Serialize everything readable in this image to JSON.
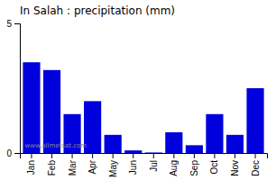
{
  "chart_data": {
    "type": "bar",
    "title": "In Salah : precipitation (mm)",
    "categories": [
      "Jan",
      "Feb",
      "Mar",
      "Apr",
      "May",
      "Jun",
      "Jul",
      "Aug",
      "Sep",
      "Oct",
      "Nov",
      "Dec"
    ],
    "values": [
      3.5,
      3.2,
      1.5,
      2.0,
      0.7,
      0.1,
      0.02,
      0.8,
      0.3,
      1.5,
      0.7,
      2.5
    ],
    "color": "#0000dd",
    "ylim": [
      0,
      5
    ],
    "yticks": [
      0,
      5
    ],
    "grid": false,
    "annotations": [
      "www.allmetsat.com"
    ]
  }
}
